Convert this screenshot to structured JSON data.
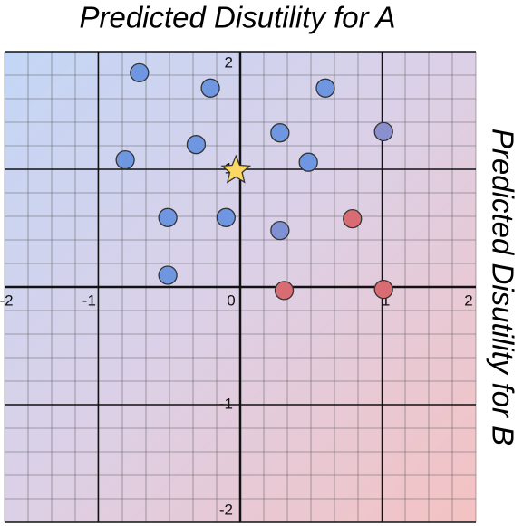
{
  "chart_data": {
    "type": "scatter",
    "title": "Predicted Disutility for A",
    "y_title": "Predicted Disutility for B",
    "x": [
      -0.71,
      -0.21,
      0.6,
      -0.31,
      0.28,
      1.01,
      -0.81,
      0.48,
      -0.03,
      -0.51,
      -0.1,
      0.28,
      0.79,
      -0.51,
      0.31,
      1.01
    ],
    "y": [
      1.82,
      1.69,
      1.69,
      1.21,
      1.31,
      1.32,
      1.08,
      1.06,
      0.99,
      0.59,
      0.59,
      0.48,
      0.58,
      0.1,
      -0.03,
      -0.02
    ],
    "colors": [
      "#6f96e0",
      "#6f96e0",
      "#6f96e0",
      "#6f96e0",
      "#6f96e0",
      "#8a8fce",
      "#6f96e0",
      "#6f96e0",
      "#fcd862",
      "#6f96e0",
      "#6f96e0",
      "#8090d4",
      "#d96b72",
      "#6f96e0",
      "#d96b72",
      "#d96b72"
    ],
    "markers": [
      "circle",
      "circle",
      "circle",
      "circle",
      "circle",
      "circle",
      "circle",
      "circle",
      "star",
      "circle",
      "circle",
      "circle",
      "circle",
      "circle",
      "circle",
      "circle"
    ],
    "xlim": [
      -1.66,
      1.66
    ],
    "ylim": [
      -2,
      2
    ],
    "xticks": [
      -2,
      -1,
      0,
      1,
      2
    ],
    "yticks": [
      -2,
      -1,
      0,
      1,
      2
    ],
    "grid": true
  }
}
